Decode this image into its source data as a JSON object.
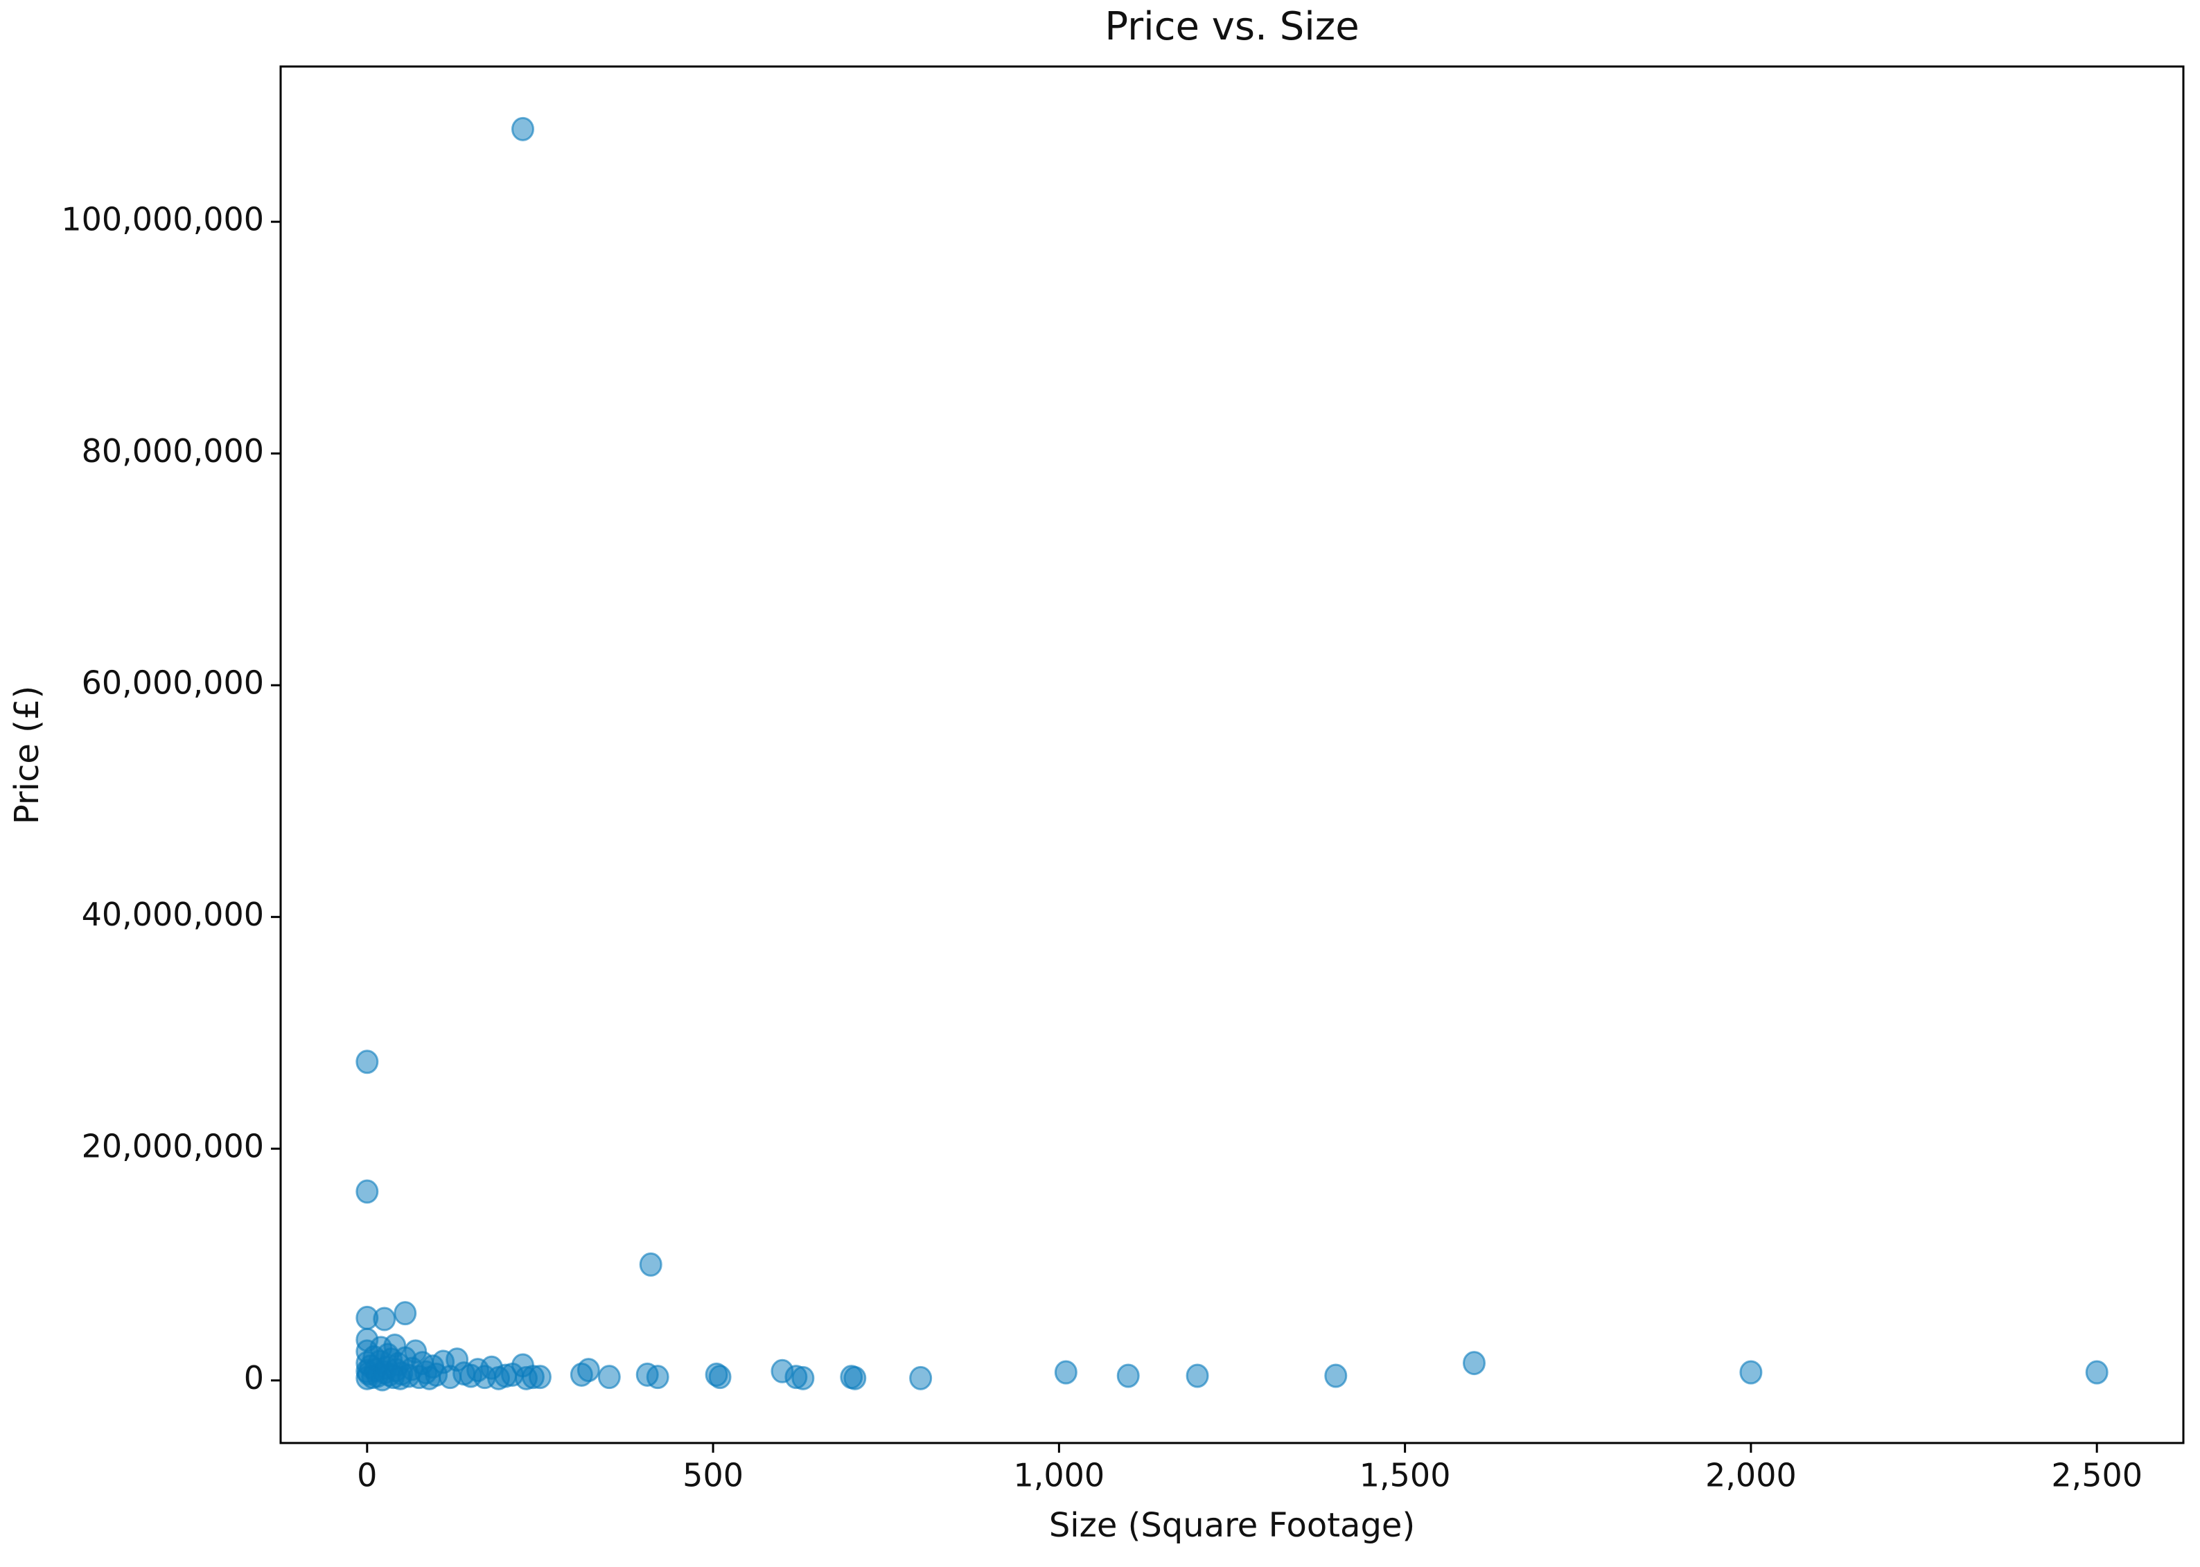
{
  "chart_data": {
    "type": "scatter",
    "title": "Price vs. Size",
    "x_label": "Size (Square Footage)",
    "y_label": "Price (£)",
    "color": "#0a7bbd",
    "xlim": [
      -125,
      2625
    ],
    "ylim": [
      -5400000,
      113400000
    ],
    "xticks": [
      0,
      500,
      {
        "value": 1000,
        "label": "1,000"
      },
      {
        "value": 1500,
        "label": "1,500"
      },
      {
        "value": 2000,
        "label": "2,000"
      },
      {
        "value": 2500,
        "label": "2,500"
      }
    ],
    "yticks": [
      0,
      {
        "value": 20000000,
        "label": "20,000,000"
      },
      {
        "value": 40000000,
        "label": "40,000,000"
      },
      {
        "value": 60000000,
        "label": "60,000,000"
      },
      {
        "value": 80000000,
        "label": "80,000,000"
      },
      {
        "value": 100000000,
        "label": "100,000,000"
      }
    ],
    "grid": false,
    "x": [
      225,
      0,
      0,
      410,
      55,
      0,
      25,
      1600,
      2000,
      2500,
      1400,
      1200,
      1100,
      1010,
      800,
      700,
      630,
      600,
      510,
      420,
      350,
      310,
      240,
      225,
      200,
      0,
      0,
      0,
      0,
      0,
      2,
      5,
      8,
      10,
      12,
      15,
      18,
      20,
      22,
      25,
      28,
      30,
      32,
      35,
      38,
      40,
      42,
      45,
      48,
      50,
      55,
      60,
      65,
      70,
      75,
      80,
      85,
      90,
      95,
      100,
      110,
      120,
      130,
      140,
      150,
      160,
      170,
      180,
      190,
      210,
      230,
      250,
      405,
      505,
      705,
      620,
      320
    ],
    "values": [
      108000000,
      27500000,
      16300000,
      10000000,
      5800000,
      5400000,
      5300000,
      1500000,
      700000,
      700000,
      400000,
      400000,
      400000,
      700000,
      200000,
      300000,
      200000,
      800000,
      300000,
      300000,
      300000,
      500000,
      300000,
      1300000,
      400000,
      200000,
      800000,
      1500000,
      2500000,
      3500000,
      600000,
      1200000,
      300000,
      2000000,
      900000,
      400000,
      1600000,
      2800000,
      100000,
      700000,
      1100000,
      2200000,
      500000,
      1800000,
      300000,
      3000000,
      900000,
      1400000,
      200000,
      600000,
      1900000,
      400000,
      1000000,
      2500000,
      300000,
      1500000,
      700000,
      200000,
      1200000,
      500000,
      1600000,
      300000,
      1800000,
      600000,
      400000,
      900000,
      300000,
      1100000,
      200000,
      500000,
      200000,
      300000,
      500000,
      500000,
      200000,
      300000,
      900000
    ]
  }
}
